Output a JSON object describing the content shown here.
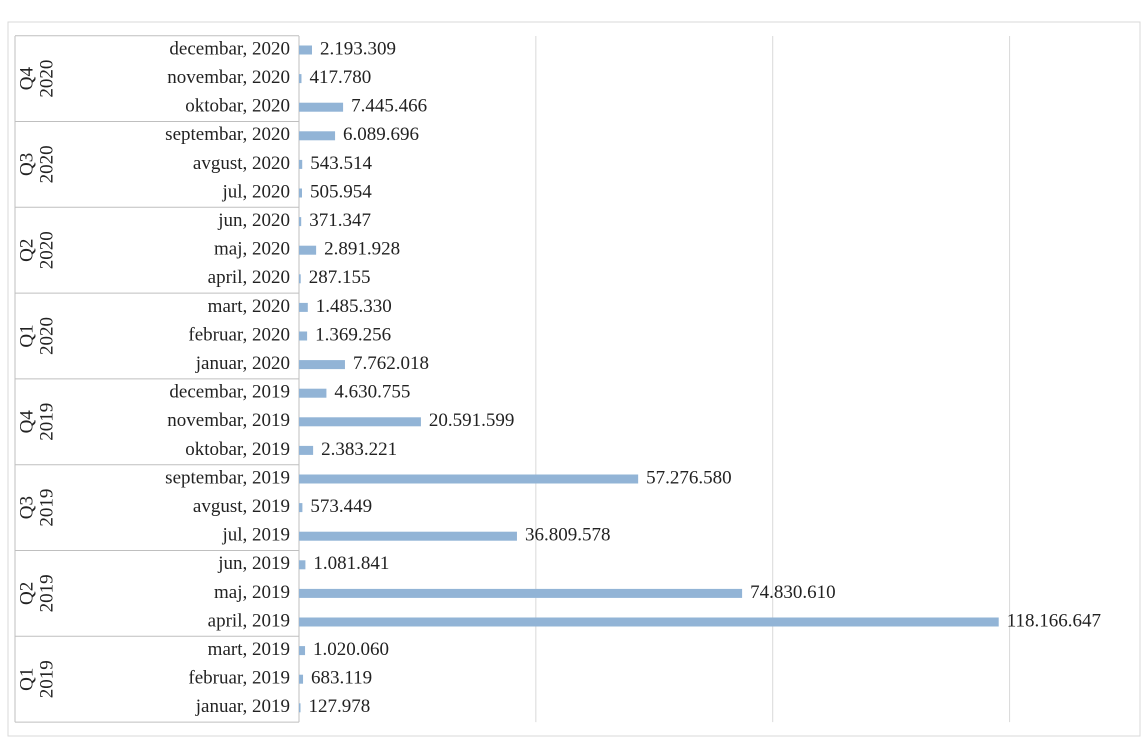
{
  "chart_data": {
    "type": "bar",
    "orientation": "horizontal",
    "color": "#92b4d6",
    "grid": true,
    "xlim": [
      0,
      140000000
    ],
    "xticks": [
      0,
      40000000,
      80000000,
      120000000
    ],
    "groups": [
      {
        "quarter": "Q4",
        "year": "2020",
        "categories": [
          "decembar, 2020",
          "novembar, 2020",
          "oktobar, 2020"
        ],
        "values": [
          2193309,
          417780,
          7445466
        ],
        "value_labels": [
          "2.193.309",
          "417.780",
          "7.445.466"
        ]
      },
      {
        "quarter": "Q3",
        "year": "2020",
        "categories": [
          "septembar, 2020",
          "avgust, 2020",
          "jul, 2020"
        ],
        "values": [
          6089696,
          543514,
          505954
        ],
        "value_labels": [
          "6.089.696",
          "543.514",
          "505.954"
        ]
      },
      {
        "quarter": "Q2",
        "year": "2020",
        "categories": [
          "jun, 2020",
          "maj, 2020",
          "april, 2020"
        ],
        "values": [
          371347,
          2891928,
          287155
        ],
        "value_labels": [
          "371.347",
          "2.891.928",
          "287.155"
        ]
      },
      {
        "quarter": "Q1",
        "year": "2020",
        "categories": [
          "mart, 2020",
          "februar, 2020",
          "januar, 2020"
        ],
        "values": [
          1485330,
          1369256,
          7762018
        ],
        "value_labels": [
          "1.485.330",
          "1.369.256",
          "7.762.018"
        ]
      },
      {
        "quarter": "Q4",
        "year": "2019",
        "categories": [
          "decembar, 2019",
          "novembar, 2019",
          "oktobar, 2019"
        ],
        "values": [
          4630755,
          20591599,
          2383221
        ],
        "value_labels": [
          "4.630.755",
          "20.591.599",
          "2.383.221"
        ]
      },
      {
        "quarter": "Q3",
        "year": "2019",
        "categories": [
          "septembar, 2019",
          "avgust, 2019",
          "jul, 2019"
        ],
        "values": [
          57276580,
          573449,
          36809578
        ],
        "value_labels": [
          "57.276.580",
          "573.449",
          "36.809.578"
        ]
      },
      {
        "quarter": "Q2",
        "year": "2019",
        "categories": [
          "jun, 2019",
          "maj, 2019",
          "april, 2019"
        ],
        "values": [
          1081841,
          74830610,
          118166647
        ],
        "value_labels": [
          "1.081.841",
          "74.830.610",
          "118.166.647"
        ]
      },
      {
        "quarter": "Q1",
        "year": "2019",
        "categories": [
          "mart, 2019",
          "februar, 2019",
          "januar, 2019"
        ],
        "values": [
          1020060,
          683119,
          127978
        ],
        "value_labels": [
          "1.020.060",
          "683.119",
          "127.978"
        ]
      }
    ]
  }
}
